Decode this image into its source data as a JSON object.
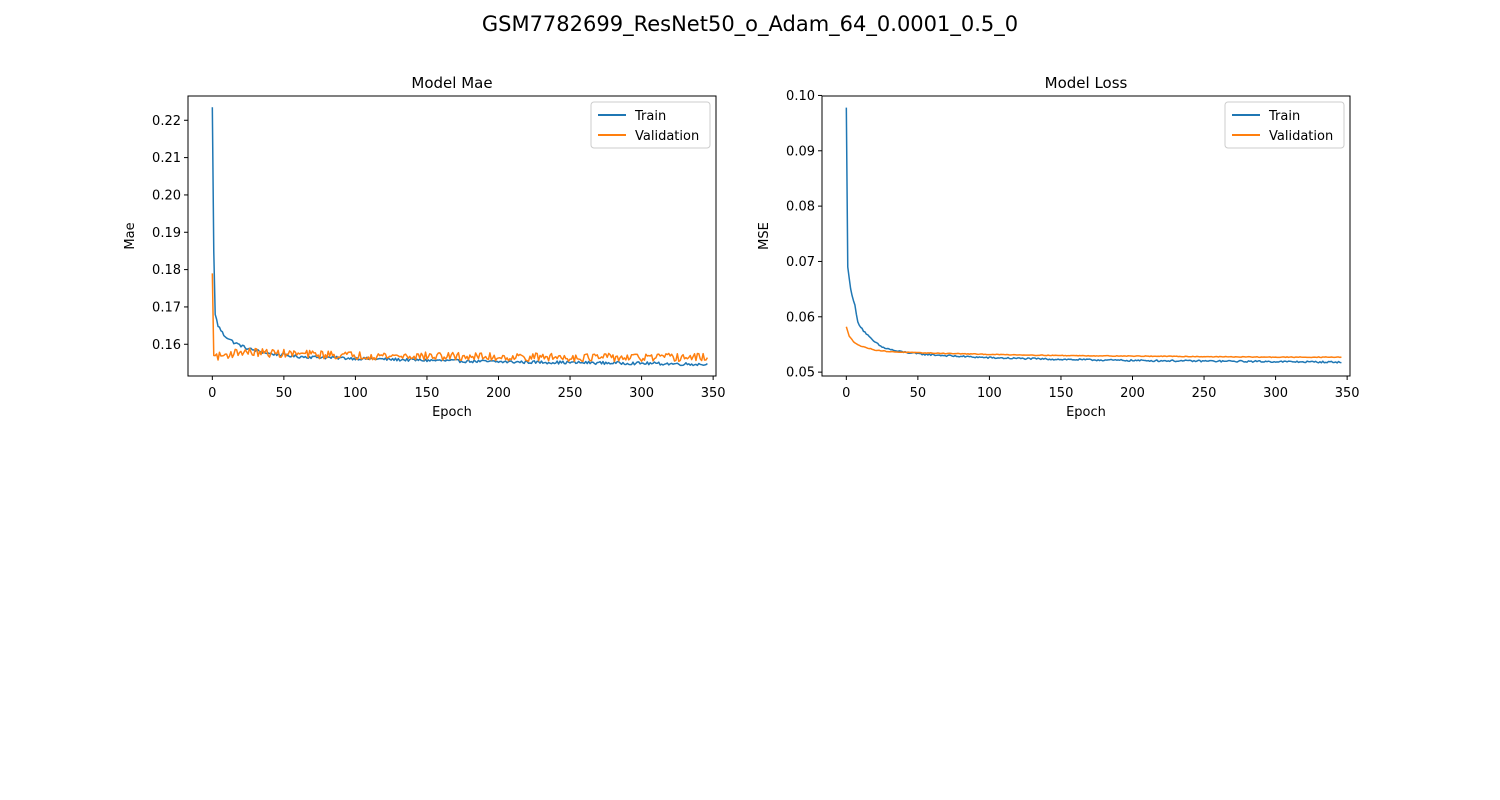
{
  "figure": {
    "title": "GSM7782699_ResNet50_o_Adam_64_0.0001_0.5_0"
  },
  "colors": {
    "train": "#1f77b4",
    "validation": "#ff7f0e"
  },
  "chart_data": [
    {
      "type": "line",
      "title": "Model Mae",
      "xlabel": "Epoch",
      "ylabel": "Mae",
      "xlim": [
        -17,
        352
      ],
      "ylim": [
        0.1515,
        0.2265
      ],
      "xticks": [
        0,
        50,
        100,
        150,
        200,
        250,
        300,
        350
      ],
      "yticks": [
        0.16,
        0.17,
        0.18,
        0.19,
        0.2,
        0.21,
        0.22
      ],
      "ytick_labels": [
        "0.16",
        "0.17",
        "0.18",
        "0.19",
        "0.20",
        "0.21",
        "0.22"
      ],
      "grid": false,
      "legend_position": "top-right",
      "epochs": 347,
      "series": [
        {
          "name": "Train",
          "color": "#1f77b4",
          "anchors": [
            [
              0,
              0.2235
            ],
            [
              1,
              0.185
            ],
            [
              2,
              0.168
            ],
            [
              4,
              0.165
            ],
            [
              8,
              0.1625
            ],
            [
              15,
              0.1605
            ],
            [
              25,
              0.1588
            ],
            [
              40,
              0.1575
            ],
            [
              60,
              0.1567
            ],
            [
              100,
              0.1562
            ],
            [
              150,
              0.1557
            ],
            [
              200,
              0.1553
            ],
            [
              250,
              0.1551
            ],
            [
              300,
              0.1549
            ],
            [
              346,
              0.1546
            ]
          ],
          "noise": 0.0004
        },
        {
          "name": "Validation",
          "color": "#ff7f0e",
          "anchors": [
            [
              0,
              0.179
            ],
            [
              1,
              0.157
            ],
            [
              5,
              0.1568
            ],
            [
              20,
              0.158
            ],
            [
              50,
              0.1575
            ],
            [
              100,
              0.157
            ],
            [
              150,
              0.1568
            ],
            [
              200,
              0.1566
            ],
            [
              250,
              0.1565
            ],
            [
              300,
              0.1564
            ],
            [
              346,
              0.1565
            ]
          ],
          "noise": 0.0011
        }
      ]
    },
    {
      "type": "line",
      "title": "Model Loss",
      "xlabel": "Epoch",
      "ylabel": "MSE",
      "xlim": [
        -17,
        352
      ],
      "ylim": [
        0.0493,
        0.0999
      ],
      "xticks": [
        0,
        50,
        100,
        150,
        200,
        250,
        300,
        350
      ],
      "yticks": [
        0.05,
        0.06,
        0.07,
        0.08,
        0.09,
        0.1
      ],
      "ytick_labels": [
        "0.05",
        "0.06",
        "0.07",
        "0.08",
        "0.09",
        "0.10"
      ],
      "grid": false,
      "legend_position": "top-right",
      "epochs": 347,
      "series": [
        {
          "name": "Train",
          "color": "#1f77b4",
          "anchors": [
            [
              0,
              0.0978
            ],
            [
              1,
              0.069
            ],
            [
              3,
              0.065
            ],
            [
              6,
              0.062
            ],
            [
              8,
              0.059
            ],
            [
              12,
              0.0575
            ],
            [
              18,
              0.0558
            ],
            [
              25,
              0.0545
            ],
            [
              35,
              0.0538
            ],
            [
              50,
              0.0533
            ],
            [
              75,
              0.0529
            ],
            [
              100,
              0.0526
            ],
            [
              150,
              0.0523
            ],
            [
              200,
              0.0521
            ],
            [
              250,
              0.052
            ],
            [
              300,
              0.0519
            ],
            [
              346,
              0.0518
            ]
          ],
          "noise": 0.00015
        },
        {
          "name": "Validation",
          "color": "#ff7f0e",
          "anchors": [
            [
              0,
              0.0582
            ],
            [
              2,
              0.0565
            ],
            [
              5,
              0.0555
            ],
            [
              10,
              0.0547
            ],
            [
              20,
              0.054
            ],
            [
              30,
              0.0537
            ],
            [
              50,
              0.0535
            ],
            [
              100,
              0.0532
            ],
            [
              150,
              0.053
            ],
            [
              200,
              0.0529
            ],
            [
              250,
              0.0528
            ],
            [
              300,
              0.0527
            ],
            [
              346,
              0.0527
            ]
          ],
          "noise": 6e-05
        }
      ]
    }
  ]
}
